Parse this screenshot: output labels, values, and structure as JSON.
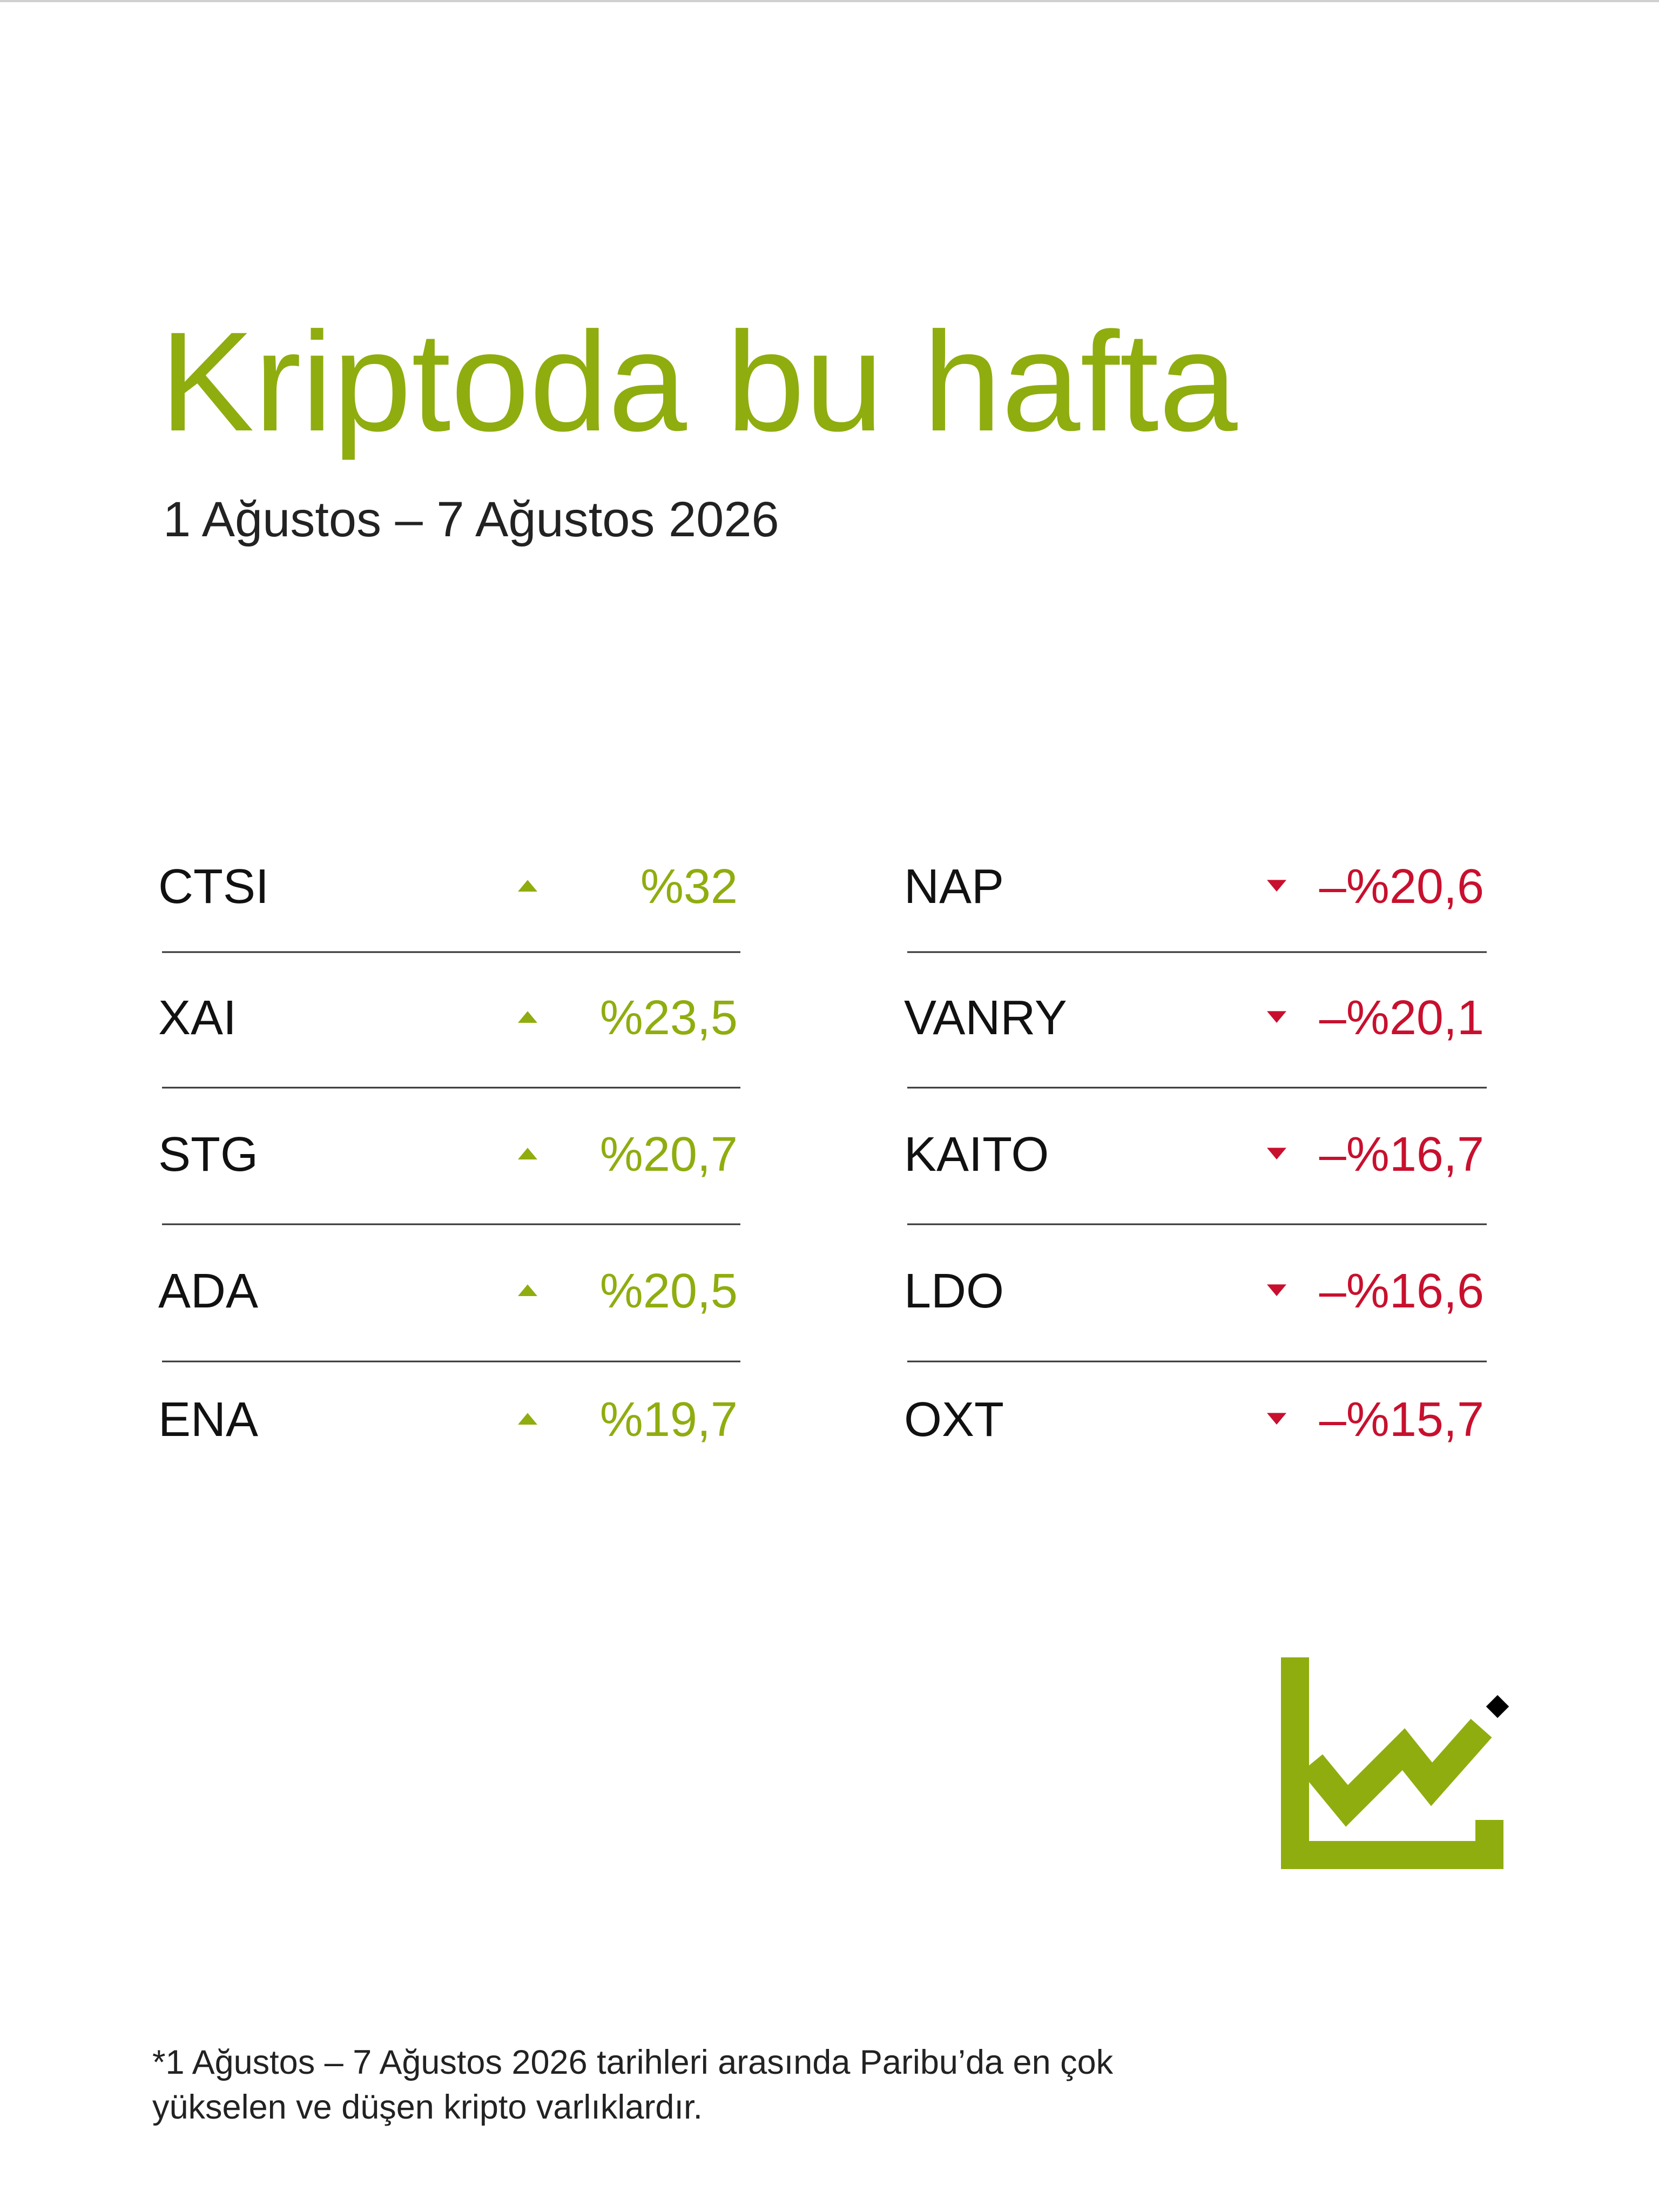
{
  "header": {
    "title": "Kriptoda bu hafta",
    "subtitle": "1 Ağustos – 7 Ağustos 2026"
  },
  "gainers": [
    {
      "name": "CTSI",
      "change": "%32"
    },
    {
      "name": "XAI",
      "change": "%23,5"
    },
    {
      "name": "STG",
      "change": "%20,7"
    },
    {
      "name": "ADA",
      "change": "%20,5"
    },
    {
      "name": "ENA",
      "change": "%19,7"
    }
  ],
  "losers": [
    {
      "name": "NAP",
      "change": "–%20,6"
    },
    {
      "name": "VANRY",
      "change": "–%20,1"
    },
    {
      "name": "KAITO",
      "change": "–%16,7"
    },
    {
      "name": "LDO",
      "change": "–%16,6"
    },
    {
      "name": "OXT",
      "change": "–%15,7"
    }
  ],
  "footnote": {
    "lines": [
      "*1 Ağustos – 7 Ağustos 2026 tarihleri arasında Paribu’da en çok",
      "yükselen ve düşen kripto varlıklardır."
    ]
  }
}
